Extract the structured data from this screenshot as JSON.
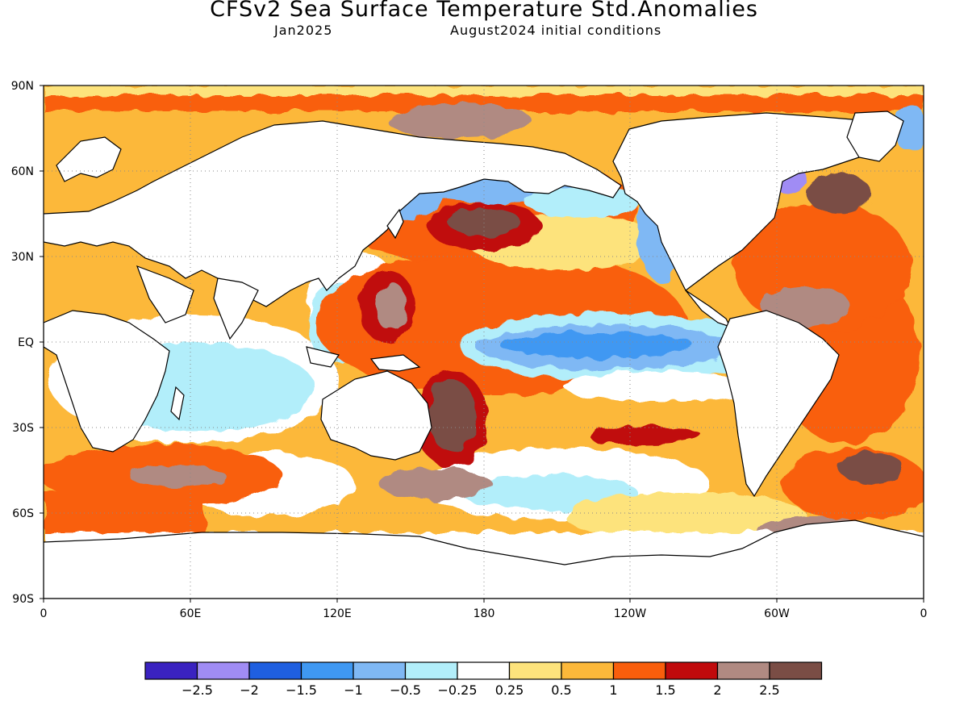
{
  "header": {
    "title": "CFSv2 Sea Surface Temperature Std.Anomalies",
    "valid_month": "Jan2025",
    "init_conditions": "August2024 initial conditions"
  },
  "axes": {
    "lat_labels": [
      "90N",
      "60N",
      "30N",
      "EQ",
      "30S",
      "60S",
      "90S"
    ],
    "lon_labels": [
      "0",
      "60E",
      "120E",
      "180",
      "120W",
      "60W",
      "0"
    ]
  },
  "legend": {
    "colors": [
      "#3a22c0",
      "#a08cf4",
      "#1f5fe0",
      "#3f98f2",
      "#7fb8f4",
      "#b2eefa",
      "#ffffff",
      "#fde37c",
      "#fcb83a",
      "#f95e0c",
      "#c00a0c",
      "#b08a82",
      "#7a4d45"
    ],
    "labels": [
      "−2.5",
      "−2",
      "−1.5",
      "−1",
      "−0.5",
      "−0.25",
      "0.25",
      "0.5",
      "1",
      "1.5",
      "2",
      "2.5"
    ]
  }
}
